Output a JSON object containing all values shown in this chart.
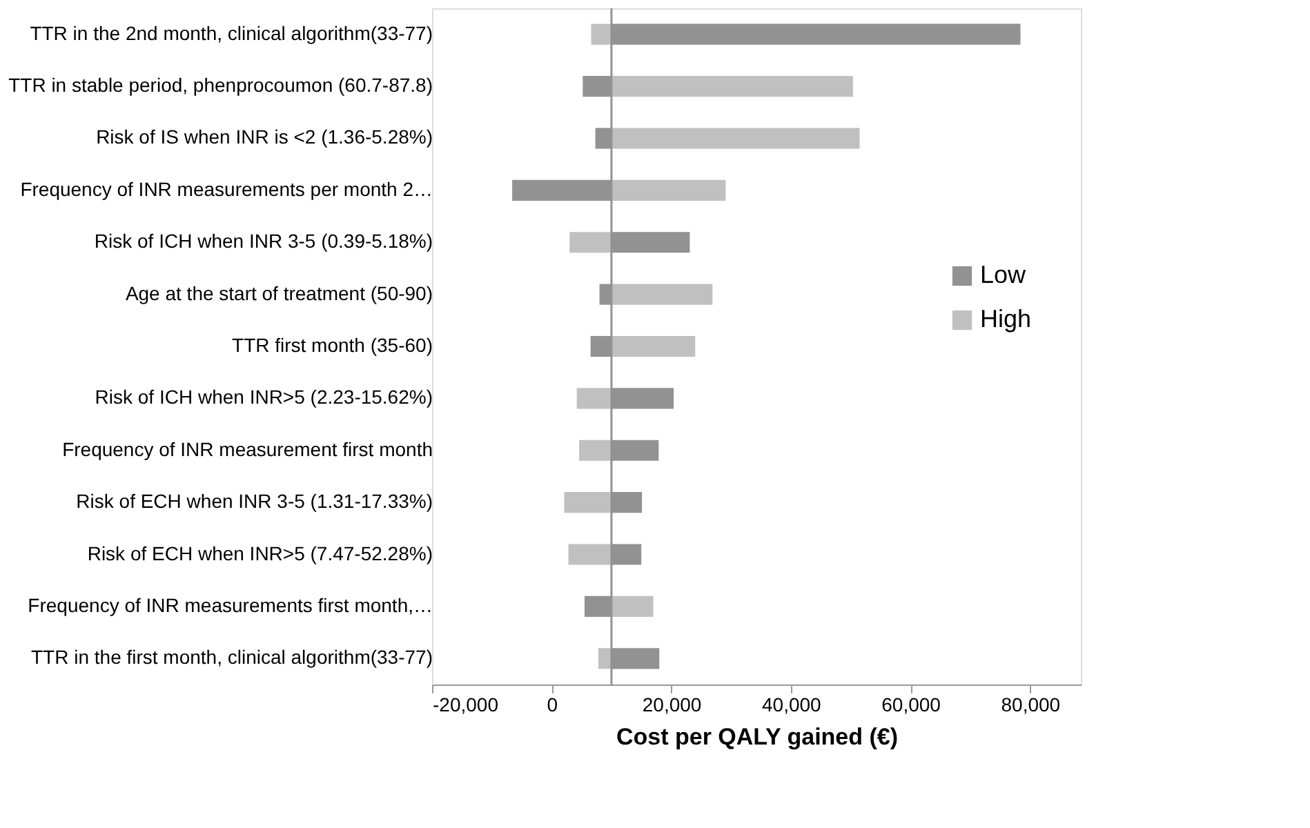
{
  "chart_data": {
    "type": "bar",
    "orientation": "horizontal",
    "xlabel": "Cost per QALY gained (€)",
    "categories": [
      "TTR in the 2nd month, clinical algorithm(33-77)",
      "TTR in stable period, phenprocoumon (60.7-87.8)",
      "Risk of IS when INR is <2 (1.36-5.28%)",
      "Frequency of INR measurements per month 2…",
      "Risk of ICH when INR 3-5 (0.39-5.18%)",
      "Age at the start of treatment (50-90)",
      "TTR first month (35-60)",
      "Risk of ICH when INR>5 (2.23-15.62%)",
      "Frequency of INR measurement first month",
      "Risk of ECH when INR 3-5 (1.31-17.33%)",
      "Risk of ECH when INR>5 (7.47-52.28%)",
      "Frequency of INR measurements first month,…",
      "TTR in the first month, clinical algorithm(33-77)"
    ],
    "series": [
      {
        "name": "Low",
        "color": "#929292",
        "base": [
          10000,
          10000,
          10000,
          10000,
          10000,
          10000,
          10000,
          10000,
          10000,
          10000,
          10000,
          10000,
          10000
        ],
        "values": [
          68400,
          -4800,
          -2700,
          -16600,
          13100,
          -2000,
          -3500,
          10400,
          7900,
          5100,
          5000,
          -4500,
          8000
        ]
      },
      {
        "name": "High",
        "color": "#c0c0c0",
        "base": [
          10000,
          10000,
          10000,
          10000,
          10000,
          10000,
          10000,
          10000,
          10000,
          10000,
          10000,
          10000,
          10000
        ],
        "values": [
          -3400,
          40400,
          41500,
          19100,
          -7000,
          16900,
          14000,
          -5800,
          -5400,
          -7900,
          -7200,
          7000,
          -2200
        ]
      }
    ],
    "xlim": [
      -20000,
      88500
    ],
    "xticks": [
      {
        "value": -20000,
        "label": "-20,000"
      },
      0,
      {
        "value": 20000,
        "label": "20,000"
      },
      {
        "value": 40000,
        "label": "40,000"
      },
      {
        "value": 60000,
        "label": "60,000"
      },
      {
        "value": 80000,
        "label": "80,000"
      }
    ],
    "ref_lines": [
      {
        "axis": "x",
        "value": 10000,
        "color": "#929292"
      }
    ],
    "grid": false,
    "legend": "right"
  }
}
